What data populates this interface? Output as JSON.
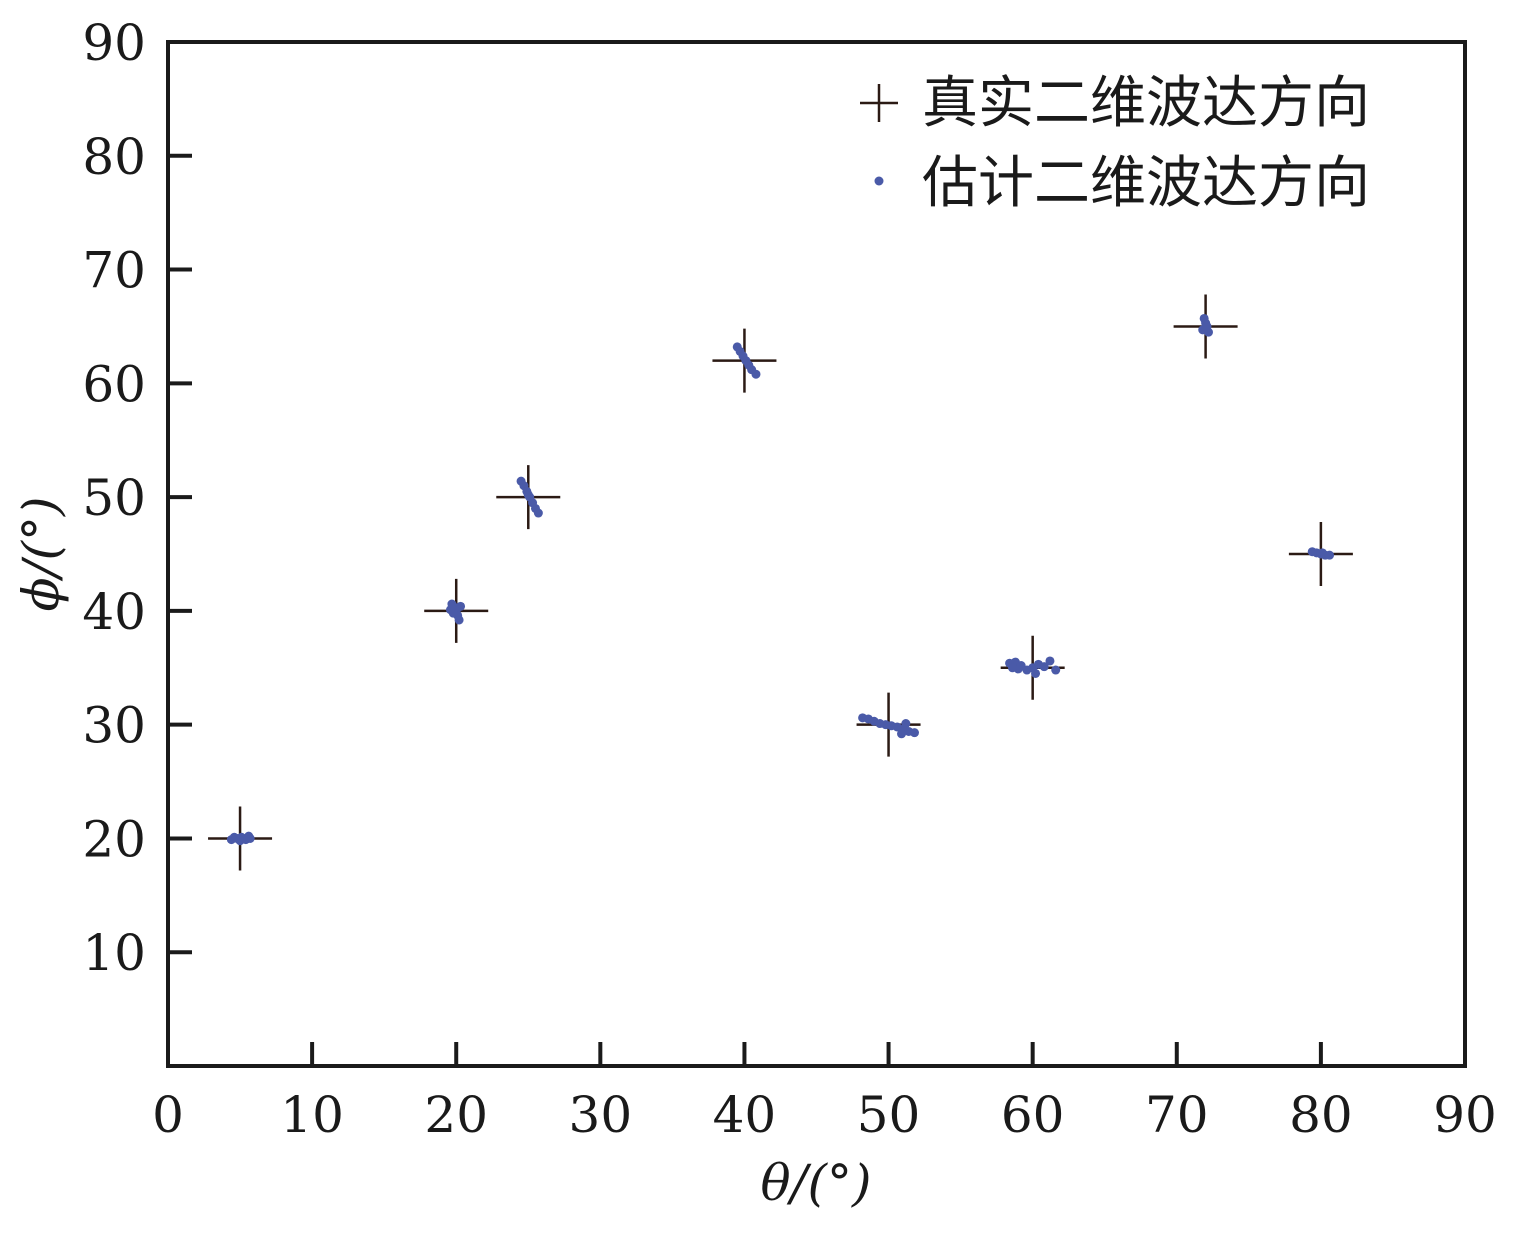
{
  "chart_data": {
    "type": "scatter",
    "xlabel": "θ/(°)",
    "ylabel": "ϕ/(°)",
    "xlim": [
      0,
      90
    ],
    "ylim": [
      0,
      90
    ],
    "xticks": [
      0,
      10,
      20,
      30,
      40,
      50,
      60,
      70,
      80,
      90
    ],
    "yticks": [
      10,
      20,
      30,
      40,
      50,
      60,
      70,
      80,
      90
    ],
    "grid": false,
    "legend_position": "top-right",
    "series": [
      {
        "name": "真实二维波达方向",
        "marker": "plus",
        "color": "#2b1a14",
        "points": [
          {
            "x": 5,
            "y": 20
          },
          {
            "x": 20,
            "y": 40
          },
          {
            "x": 25,
            "y": 50
          },
          {
            "x": 40,
            "y": 62
          },
          {
            "x": 50,
            "y": 30
          },
          {
            "x": 60,
            "y": 35
          },
          {
            "x": 72,
            "y": 65
          },
          {
            "x": 80,
            "y": 45
          }
        ]
      },
      {
        "name": "估计二维波达方向",
        "marker": "dot",
        "color": "#4a5aa8",
        "points": [
          {
            "x": 4.4,
            "y": 19.9
          },
          {
            "x": 4.8,
            "y": 20.0
          },
          {
            "x": 5.1,
            "y": 20.1
          },
          {
            "x": 5.4,
            "y": 19.9
          },
          {
            "x": 5.7,
            "y": 20.0
          },
          {
            "x": 5.0,
            "y": 19.8
          },
          {
            "x": 5.6,
            "y": 20.2
          },
          {
            "x": 4.6,
            "y": 20.1
          },
          {
            "x": 19.7,
            "y": 40.6
          },
          {
            "x": 19.9,
            "y": 40.3
          },
          {
            "x": 20.0,
            "y": 40.0
          },
          {
            "x": 20.1,
            "y": 39.6
          },
          {
            "x": 20.2,
            "y": 39.2
          },
          {
            "x": 19.8,
            "y": 39.8
          },
          {
            "x": 20.3,
            "y": 40.4
          },
          {
            "x": 19.6,
            "y": 40.1
          },
          {
            "x": 24.5,
            "y": 51.4
          },
          {
            "x": 24.7,
            "y": 51.0
          },
          {
            "x": 24.9,
            "y": 50.5
          },
          {
            "x": 25.1,
            "y": 50.0
          },
          {
            "x": 25.3,
            "y": 49.5
          },
          {
            "x": 25.5,
            "y": 49.0
          },
          {
            "x": 25.7,
            "y": 48.6
          },
          {
            "x": 25.0,
            "y": 50.2
          },
          {
            "x": 39.5,
            "y": 63.2
          },
          {
            "x": 39.7,
            "y": 62.8
          },
          {
            "x": 39.9,
            "y": 62.4
          },
          {
            "x": 40.1,
            "y": 62.0
          },
          {
            "x": 40.3,
            "y": 61.6
          },
          {
            "x": 40.5,
            "y": 61.2
          },
          {
            "x": 40.8,
            "y": 60.8
          },
          {
            "x": 48.2,
            "y": 30.6
          },
          {
            "x": 48.6,
            "y": 30.5
          },
          {
            "x": 49.0,
            "y": 30.3
          },
          {
            "x": 49.4,
            "y": 30.1
          },
          {
            "x": 49.8,
            "y": 30.0
          },
          {
            "x": 50.2,
            "y": 29.9
          },
          {
            "x": 50.6,
            "y": 29.8
          },
          {
            "x": 51.0,
            "y": 29.6
          },
          {
            "x": 51.4,
            "y": 29.4
          },
          {
            "x": 51.8,
            "y": 29.3
          },
          {
            "x": 51.2,
            "y": 30.1
          },
          {
            "x": 50.9,
            "y": 29.2
          },
          {
            "x": 58.4,
            "y": 35.4
          },
          {
            "x": 58.8,
            "y": 35.5
          },
          {
            "x": 59.2,
            "y": 35.2
          },
          {
            "x": 59.6,
            "y": 34.8
          },
          {
            "x": 60.0,
            "y": 35.0
          },
          {
            "x": 60.4,
            "y": 35.3
          },
          {
            "x": 60.8,
            "y": 35.1
          },
          {
            "x": 61.2,
            "y": 35.6
          },
          {
            "x": 61.6,
            "y": 34.8
          },
          {
            "x": 59.0,
            "y": 34.9
          },
          {
            "x": 60.2,
            "y": 34.5
          },
          {
            "x": 58.6,
            "y": 35.0
          },
          {
            "x": 71.9,
            "y": 65.7
          },
          {
            "x": 72.0,
            "y": 65.3
          },
          {
            "x": 72.1,
            "y": 65.0
          },
          {
            "x": 71.8,
            "y": 64.7
          },
          {
            "x": 72.2,
            "y": 64.5
          },
          {
            "x": 72.0,
            "y": 64.9
          },
          {
            "x": 79.4,
            "y": 45.2
          },
          {
            "x": 79.7,
            "y": 45.1
          },
          {
            "x": 80.0,
            "y": 45.0
          },
          {
            "x": 80.3,
            "y": 44.9
          },
          {
            "x": 80.6,
            "y": 44.9
          },
          {
            "x": 80.1,
            "y": 45.1
          }
        ]
      }
    ]
  }
}
